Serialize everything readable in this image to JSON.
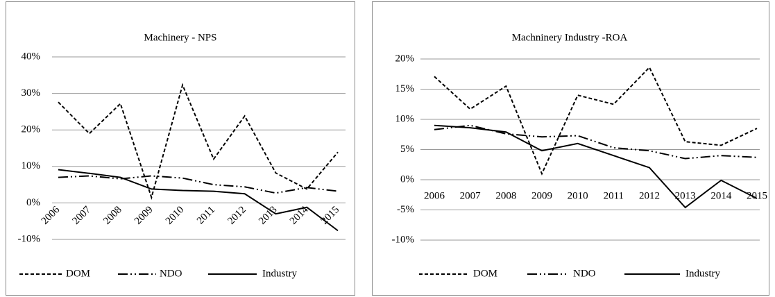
{
  "chart_data": [
    {
      "type": "line",
      "title": "Machinery - NPS",
      "categories": [
        "2006",
        "2007",
        "2008",
        "2009",
        "2010",
        "2011",
        "2012",
        "2013",
        "2014",
        "2015"
      ],
      "series": [
        {
          "name": "DOM",
          "color": "#000000",
          "values": [
            27.6,
            19,
            27.2,
            1.5,
            32.3,
            12,
            23.8,
            8.2,
            3.8,
            13.9
          ]
        },
        {
          "name": "NDO",
          "color": "#000000",
          "values": [
            7.0,
            7.4,
            6.6,
            7.4,
            6.8,
            5.0,
            4.4,
            2.7,
            4.2,
            3.2
          ]
        },
        {
          "name": "Industry",
          "color": "#000000",
          "values": [
            9.1,
            8.1,
            7.0,
            3.8,
            3.4,
            3.2,
            2.5,
            -3.0,
            -1.2,
            -7.6
          ]
        }
      ],
      "ylim": [
        -10,
        40
      ],
      "yticks": [
        {
          "value": -10,
          "label": "-10%"
        },
        {
          "value": 0,
          "label": "0%"
        },
        {
          "value": 10,
          "label": "10%"
        },
        {
          "value": 20,
          "label": "20%"
        },
        {
          "value": 30,
          "label": "30%"
        },
        {
          "value": 40,
          "label": "40%"
        }
      ],
      "grid": true,
      "legend": "bottom"
    },
    {
      "type": "line",
      "title": "Machninery Industry -ROA",
      "categories": [
        "2006",
        "2007",
        "2008",
        "2009",
        "2010",
        "2011",
        "2012",
        "2013",
        "2014",
        "2015"
      ],
      "series": [
        {
          "name": "DOM",
          "color": "#000000",
          "values": [
            17.1,
            11.7,
            15.5,
            1.0,
            14.0,
            12.5,
            18.6,
            6.3,
            5.7,
            8.5
          ]
        },
        {
          "name": "NDO",
          "color": "#000000",
          "values": [
            8.3,
            9.0,
            7.6,
            7.1,
            7.3,
            5.3,
            4.8,
            3.5,
            4.0,
            3.7
          ]
        },
        {
          "name": "Industry",
          "color": "#000000",
          "values": [
            9.0,
            8.6,
            7.9,
            4.8,
            6.0,
            4.0,
            2.0,
            -4.6,
            -0.1,
            -3.1
          ]
        }
      ],
      "ylim": [
        -10,
        20
      ],
      "yticks": [
        {
          "value": -10,
          "label": "-10%"
        },
        {
          "value": -5,
          "label": "-5%"
        },
        {
          "value": 0,
          "label": "0%"
        },
        {
          "value": 5,
          "label": "5%"
        },
        {
          "value": 10,
          "label": "10%"
        },
        {
          "value": 15,
          "label": "15%"
        },
        {
          "value": 20,
          "label": "20%"
        }
      ],
      "grid": true,
      "legend": "bottom"
    }
  ]
}
